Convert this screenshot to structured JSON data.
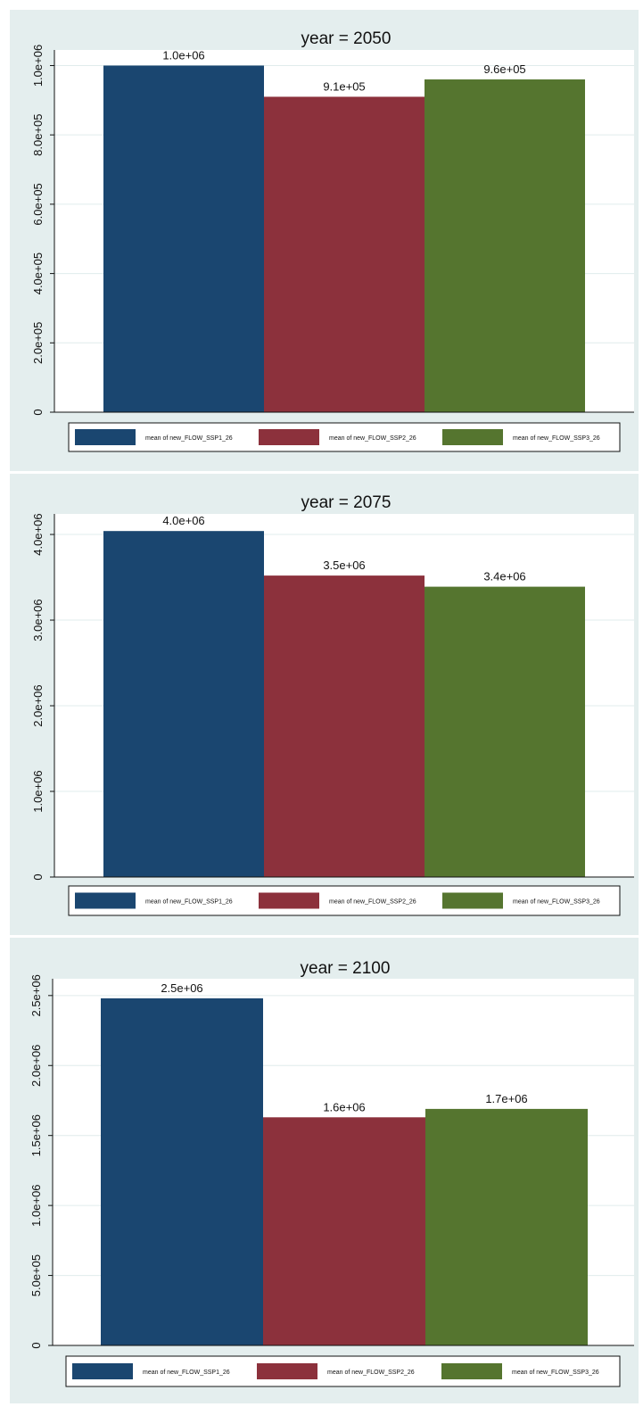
{
  "colors": {
    "ssp1": "#1a4670",
    "ssp2": "#8c313c",
    "ssp3": "#55752f",
    "panel_bg": "#e4eeee",
    "plot_bg": "#ffffff",
    "grid": "#e0ecec"
  },
  "legend": [
    "mean of new_FLOW_SSP1_26",
    "mean of new_FLOW_SSP2_26",
    "mean of new_FLOW_SSP3_26"
  ],
  "chart_data": [
    {
      "type": "bar",
      "title": "year = 2050",
      "series": [
        {
          "name": "mean of new_FLOW_SSP1_26",
          "values": [
            1000000
          ],
          "label": "1.0e+06"
        },
        {
          "name": "mean of new_FLOW_SSP2_26",
          "values": [
            910000
          ],
          "label": "9.1e+05"
        },
        {
          "name": "mean of new_FLOW_SSP3_26",
          "values": [
            960000
          ],
          "label": "9.6e+05"
        }
      ],
      "yticks": [
        0,
        200000,
        400000,
        600000,
        800000,
        1000000
      ],
      "ytick_labels": [
        "0",
        "2.0e+05",
        "4.0e+05",
        "6.0e+05",
        "8.0e+05",
        "1.0e+06"
      ],
      "ylim": [
        0,
        1045000
      ],
      "grid": true,
      "legend_position": "bottom"
    },
    {
      "type": "bar",
      "title": "year = 2075",
      "series": [
        {
          "name": "mean of new_FLOW_SSP1_26",
          "values": [
            4040000
          ],
          "label": "4.0e+06"
        },
        {
          "name": "mean of new_FLOW_SSP2_26",
          "values": [
            3520000
          ],
          "label": "3.5e+06"
        },
        {
          "name": "mean of new_FLOW_SSP3_26",
          "values": [
            3390000
          ],
          "label": "3.4e+06"
        }
      ],
      "yticks": [
        0,
        1000000,
        2000000,
        3000000,
        4000000
      ],
      "ytick_labels": [
        "0",
        "1.0e+06",
        "2.0e+06",
        "3.0e+06",
        "4.0e+06"
      ],
      "ylim": [
        0,
        4240000
      ],
      "grid": true,
      "legend_position": "bottom"
    },
    {
      "type": "bar",
      "title": "year = 2100",
      "series": [
        {
          "name": "mean of new_FLOW_SSP1_26",
          "values": [
            2480000
          ],
          "label": "2.5e+06"
        },
        {
          "name": "mean of new_FLOW_SSP2_26",
          "values": [
            1630000
          ],
          "label": "1.6e+06"
        },
        {
          "name": "mean of new_FLOW_SSP3_26",
          "values": [
            1690000
          ],
          "label": "1.7e+06"
        }
      ],
      "yticks": [
        0,
        500000,
        1000000,
        1500000,
        2000000,
        2500000
      ],
      "ytick_labels": [
        "0",
        "5.0e+05",
        "1.0e+06",
        "1.5e+06",
        "2.0e+06",
        "2.5e+06"
      ],
      "ylim": [
        0,
        2620000
      ],
      "grid": true,
      "legend_position": "bottom"
    }
  ]
}
